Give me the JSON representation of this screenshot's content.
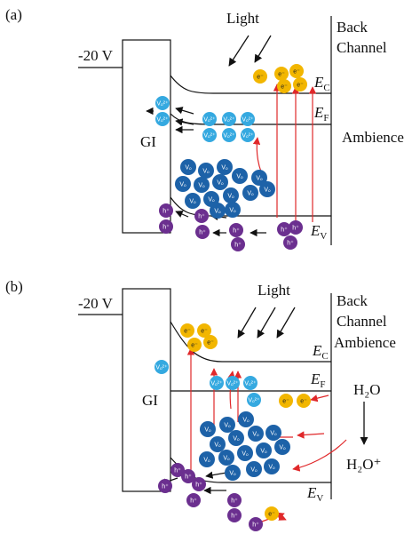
{
  "species": {
    "electron": "e⁻",
    "hole": "h⁺",
    "vacancy": "Vₒ",
    "ionized_vacancy": "Vₒ²⁺"
  },
  "panels": [
    {
      "label": "(a)",
      "gate_voltage": "-20 V",
      "insulator": "GI",
      "light": "Light",
      "back_channel": [
        "Back",
        "Channel"
      ],
      "ambience": "Ambience",
      "levels": {
        "conduction": {
          "symbol": "E",
          "sub": "C"
        },
        "fermi": {
          "symbol": "E",
          "sub": "F"
        },
        "valence": {
          "symbol": "E",
          "sub": "V"
        }
      }
    },
    {
      "label": "(b)",
      "gate_voltage": "-20 V",
      "insulator": "GI",
      "light": "Light",
      "back_channel": [
        "Back",
        "Channel"
      ],
      "ambience": "Ambience",
      "levels": {
        "conduction": {
          "symbol": "E",
          "sub": "C"
        },
        "fermi": {
          "symbol": "E",
          "sub": "F"
        },
        "valence": {
          "symbol": "E",
          "sub": "V"
        }
      },
      "molecule": "H₂O",
      "ion": "H₂O⁺"
    }
  ]
}
